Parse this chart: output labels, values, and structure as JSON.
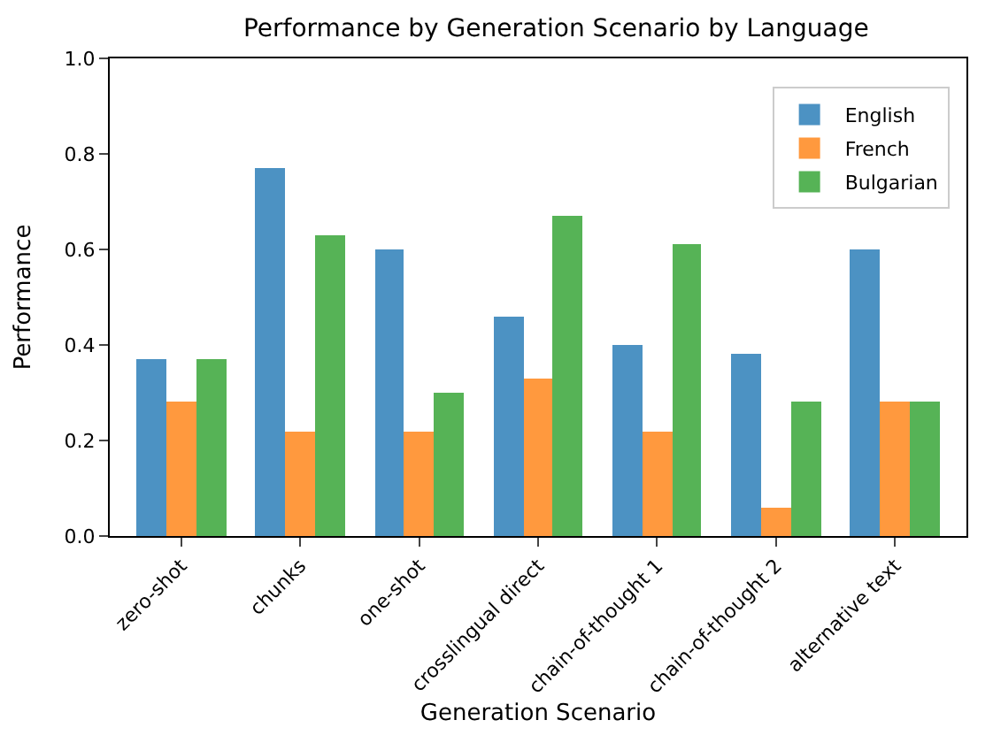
{
  "chart_data": {
    "type": "bar",
    "title": "Performance by Generation Scenario by Language",
    "xlabel": "Generation Scenario",
    "ylabel": "Performance",
    "categories": [
      "zero-shot",
      "chunks",
      "one-shot",
      "crosslingual direct",
      "chain-of-thought 1",
      "chain-of-thought 2",
      "alternative text"
    ],
    "series": [
      {
        "name": "English",
        "color": "#4c92c3",
        "values": [
          0.37,
          0.77,
          0.6,
          0.46,
          0.4,
          0.38,
          0.6
        ]
      },
      {
        "name": "French",
        "color": "#ff993e",
        "values": [
          0.28,
          0.22,
          0.22,
          0.33,
          0.22,
          0.06,
          0.28
        ]
      },
      {
        "name": "Bulgarian",
        "color": "#56b356",
        "values": [
          0.37,
          0.63,
          0.3,
          0.67,
          0.61,
          0.28,
          0.28
        ]
      }
    ],
    "ylim": [
      0,
      1
    ],
    "yticks": [
      {
        "value": 0,
        "label": "0.0"
      },
      {
        "value": 0.2,
        "label": "0.2"
      },
      {
        "value": 0.4,
        "label": "0.4"
      },
      {
        "value": 0.6,
        "label": "0.6"
      },
      {
        "value": 0.8,
        "label": "0.8"
      },
      {
        "value": 1,
        "label": "1.0"
      }
    ],
    "legend": "top right"
  }
}
